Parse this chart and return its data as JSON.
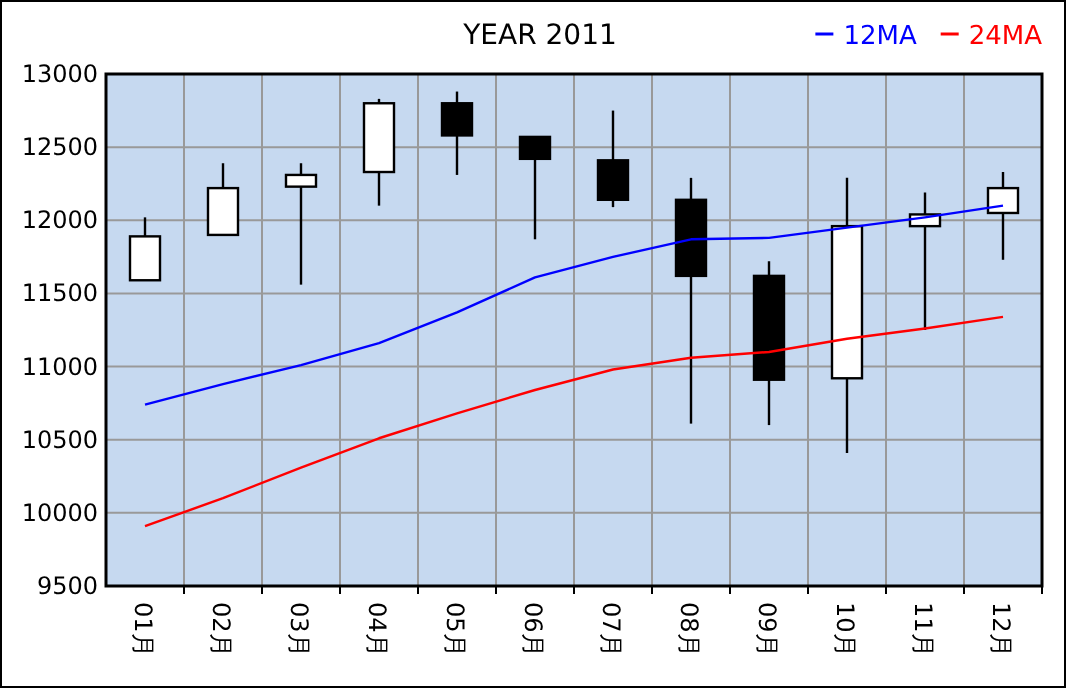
{
  "chart_data": {
    "type": "candlestick",
    "title": "YEAR 2011",
    "categories": [
      "01月",
      "02月",
      "03月",
      "04月",
      "05月",
      "06月",
      "07月",
      "08月",
      "09月",
      "10月",
      "11月",
      "12月"
    ],
    "ohlc": [
      [
        11590,
        12020,
        11590,
        11890
      ],
      [
        11900,
        12390,
        11900,
        12220
      ],
      [
        12230,
        12390,
        11560,
        12310
      ],
      [
        12330,
        12830,
        12100,
        12800
      ],
      [
        12800,
        12880,
        12310,
        12580
      ],
      [
        12570,
        12570,
        11870,
        12420
      ],
      [
        12410,
        12750,
        12090,
        12140
      ],
      [
        12140,
        12290,
        10610,
        11620
      ],
      [
        11620,
        11720,
        10600,
        10910
      ],
      [
        10920,
        12290,
        10410,
        11960
      ],
      [
        11960,
        12190,
        11250,
        12040
      ],
      [
        12050,
        12330,
        11730,
        12220
      ]
    ],
    "series": [
      {
        "name": "12MA",
        "type": "line",
        "color": "#0000ff",
        "values": [
          10740,
          10880,
          11010,
          11160,
          11370,
          11610,
          11750,
          11870,
          11880,
          11950,
          12020,
          12100
        ]
      },
      {
        "name": "24MA",
        "type": "line",
        "color": "#ff0000",
        "values": [
          9910,
          10100,
          10310,
          10510,
          10680,
          10840,
          10980,
          11060,
          11100,
          11190,
          11260,
          11340
        ]
      }
    ],
    "ylim": [
      9500,
      13000
    ],
    "yticks": [
      9500,
      10000,
      10500,
      11000,
      11500,
      12000,
      12500,
      13000
    ],
    "grid": true,
    "legend": "top right"
  }
}
